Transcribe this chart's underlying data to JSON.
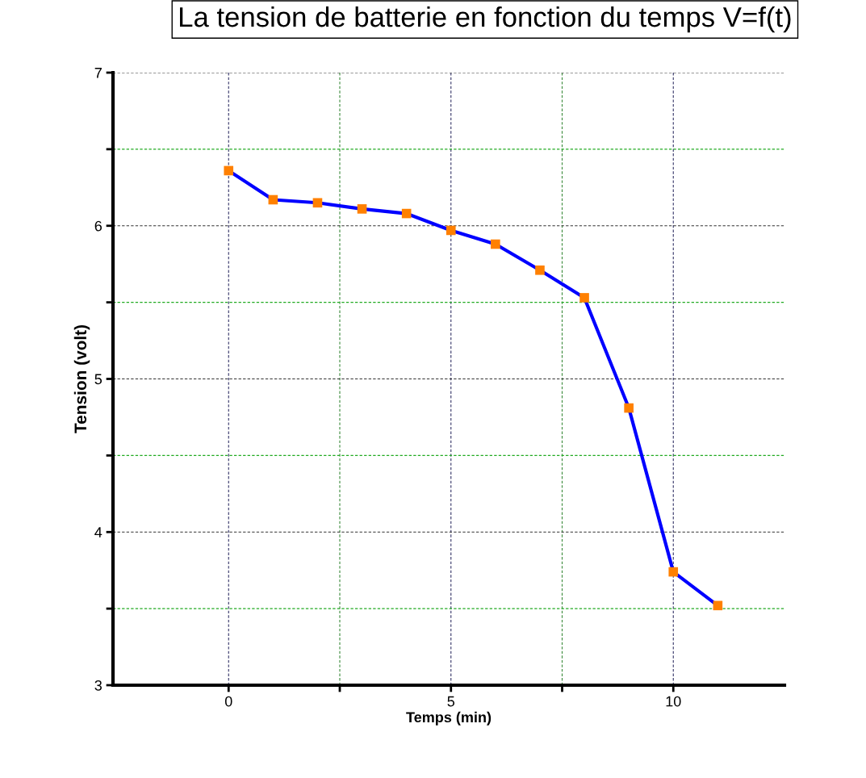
{
  "chart_data": {
    "type": "line",
    "title": "La tension de batterie en fonction du temps V=f(t)",
    "xlabel": "Temps (min)",
    "ylabel": "Tension (volt)",
    "x": [
      0,
      1,
      2,
      3,
      4,
      5,
      6,
      7,
      8,
      9,
      10,
      11
    ],
    "series": [
      {
        "color": "#0000ff",
        "colors": [
          "#ff8000",
          "#ff8000",
          "#ff8000",
          "#ff8000",
          "#ff8000",
          "#ff8000",
          "#ff8000",
          "#ff8000",
          "#ff8000",
          "#ff8000",
          "#ff8000",
          "#ff8000"
        ],
        "values": [
          6.36,
          6.17,
          6.15,
          6.11,
          6.08,
          5.97,
          5.88,
          5.71,
          5.53,
          4.81,
          3.74,
          3.52
        ]
      }
    ],
    "xlim": [
      -2.6,
      12.5
    ],
    "ylim": [
      3,
      7
    ],
    "xticks": [
      0,
      {
        "value": 2.5,
        "label": null
      },
      5,
      {
        "value": 7.5,
        "label": null
      },
      10
    ],
    "yticks": [
      3,
      {
        "value": 3.5,
        "label": null
      },
      4,
      {
        "value": 4.5,
        "label": null
      },
      5,
      {
        "value": 5.5,
        "label": null
      },
      6,
      {
        "value": 6.5,
        "label": null
      },
      7
    ],
    "grid": true,
    "marker": "square",
    "line_style": "solid"
  }
}
